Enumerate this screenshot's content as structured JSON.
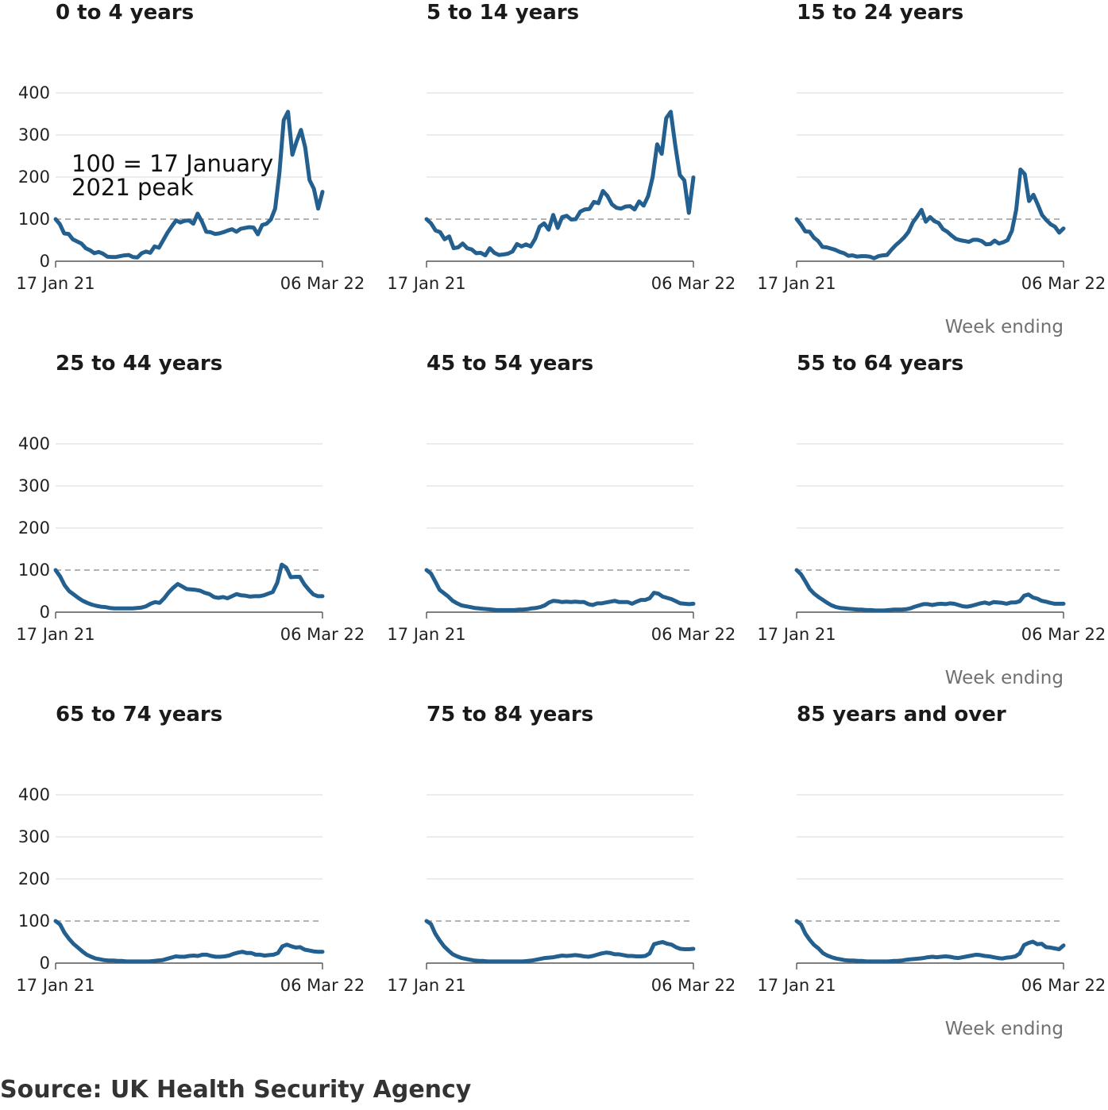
{
  "colors": {
    "series": "#23608f",
    "reference": "#9a9a9a",
    "grid": "#d9d9d9"
  },
  "source": "Source: UK Health Security Agency",
  "chart_data": {
    "type": "line",
    "x_tick_labels": [
      "17 Jan 21",
      "06 Mar 22"
    ],
    "x_axis_title": "Week ending",
    "y_ticks": [
      0,
      100,
      200,
      300,
      400
    ],
    "ylim": [
      0,
      400
    ],
    "reference_value": 100,
    "annotation": [
      "100 = 17 January",
      "2021 peak"
    ],
    "grid": true,
    "panels": [
      {
        "title": "0 to 4 years",
        "values": [
          100,
          88,
          66,
          65,
          52,
          47,
          42,
          31,
          26,
          19,
          22,
          18,
          11,
          10,
          10,
          12,
          14,
          15,
          10,
          9,
          19,
          23,
          20,
          35,
          32,
          50,
          68,
          83,
          97,
          92,
          96,
          97,
          89,
          113,
          94,
          70,
          69,
          65,
          66,
          69,
          73,
          76,
          70,
          77,
          79,
          81,
          80,
          64,
          86,
          89,
          99,
          125,
          210,
          335,
          355,
          253,
          285,
          312,
          270,
          193,
          172,
          125,
          165
        ]
      },
      {
        "title": "5 to 14 years",
        "values": [
          100,
          90,
          73,
          69,
          52,
          59,
          31,
          33,
          42,
          31,
          28,
          19,
          20,
          14,
          31,
          20,
          15,
          16,
          18,
          23,
          41,
          35,
          40,
          35,
          53,
          82,
          90,
          75,
          110,
          79,
          105,
          108,
          99,
          100,
          118,
          123,
          124,
          141,
          138,
          167,
          155,
          135,
          127,
          125,
          130,
          131,
          123,
          142,
          132,
          155,
          200,
          278,
          255,
          340,
          355,
          275,
          205,
          192,
          115,
          199
        ]
      },
      {
        "title": "15 to 24 years",
        "values": [
          100,
          87,
          71,
          70,
          56,
          48,
          34,
          33,
          30,
          27,
          22,
          19,
          13,
          14,
          11,
          12,
          12,
          11,
          7,
          12,
          14,
          15,
          27,
          38,
          47,
          57,
          70,
          92,
          106,
          122,
          94,
          105,
          95,
          91,
          76,
          70,
          61,
          53,
          50,
          48,
          46,
          51,
          51,
          48,
          40,
          41,
          49,
          42,
          45,
          50,
          72,
          122,
          218,
          207,
          143,
          158,
          135,
          110,
          98,
          88,
          82,
          68,
          78
        ]
      },
      {
        "title": "25 to 44 years",
        "values": [
          100,
          85,
          64,
          50,
          42,
          34,
          27,
          22,
          18,
          15,
          13,
          12,
          10,
          9,
          9,
          9,
          9,
          9,
          10,
          11,
          14,
          20,
          24,
          22,
          33,
          47,
          58,
          67,
          61,
          55,
          54,
          53,
          51,
          46,
          43,
          36,
          34,
          36,
          33,
          38,
          43,
          40,
          39,
          37,
          38,
          38,
          40,
          44,
          48,
          70,
          113,
          106,
          83,
          84,
          84,
          66,
          53,
          42,
          38,
          38
        ]
      },
      {
        "title": "45 to 54 years",
        "values": [
          100,
          92,
          73,
          53,
          45,
          37,
          27,
          21,
          16,
          14,
          12,
          10,
          9,
          8,
          7,
          6,
          5,
          5,
          5,
          5,
          5,
          6,
          6,
          7,
          9,
          10,
          12,
          16,
          23,
          27,
          26,
          24,
          25,
          24,
          25,
          24,
          24,
          19,
          17,
          21,
          21,
          23,
          25,
          27,
          24,
          24,
          24,
          20,
          25,
          29,
          29,
          33,
          46,
          44,
          37,
          34,
          31,
          26,
          21,
          20,
          19,
          20
        ]
      },
      {
        "title": "55 to 64 years",
        "values": [
          100,
          90,
          73,
          55,
          44,
          36,
          29,
          22,
          16,
          12,
          10,
          9,
          8,
          7,
          6,
          6,
          5,
          5,
          4,
          4,
          4,
          5,
          6,
          6,
          6,
          7,
          9,
          13,
          16,
          19,
          19,
          17,
          19,
          20,
          19,
          21,
          20,
          17,
          14,
          13,
          15,
          18,
          21,
          23,
          20,
          24,
          23,
          22,
          20,
          23,
          23,
          26,
          39,
          42,
          35,
          32,
          27,
          25,
          22,
          20,
          20,
          20
        ]
      },
      {
        "title": "65 to 74 years",
        "values": [
          100,
          92,
          72,
          58,
          46,
          37,
          28,
          20,
          15,
          11,
          9,
          7,
          6,
          6,
          5,
          5,
          4,
          4,
          4,
          4,
          4,
          4,
          5,
          6,
          7,
          10,
          13,
          16,
          15,
          15,
          17,
          18,
          17,
          20,
          20,
          17,
          15,
          15,
          16,
          18,
          22,
          25,
          27,
          24,
          24,
          20,
          20,
          18,
          19,
          20,
          24,
          40,
          44,
          40,
          37,
          38,
          32,
          30,
          28,
          27,
          27
        ]
      },
      {
        "title": "75 to 84 years",
        "values": [
          100,
          93,
          70,
          54,
          40,
          30,
          21,
          16,
          12,
          10,
          8,
          6,
          5,
          5,
          4,
          4,
          4,
          4,
          4,
          4,
          4,
          4,
          4,
          5,
          6,
          8,
          10,
          12,
          13,
          14,
          16,
          18,
          17,
          18,
          19,
          18,
          16,
          15,
          17,
          20,
          23,
          25,
          24,
          21,
          21,
          19,
          17,
          17,
          16,
          16,
          17,
          23,
          45,
          48,
          50,
          46,
          44,
          38,
          34,
          33,
          33,
          34
        ]
      },
      {
        "title": "85 years and over",
        "values": [
          100,
          92,
          70,
          55,
          43,
          35,
          24,
          18,
          14,
          11,
          9,
          7,
          6,
          6,
          5,
          5,
          4,
          4,
          4,
          4,
          4,
          4,
          5,
          5,
          6,
          8,
          9,
          10,
          11,
          12,
          14,
          15,
          14,
          15,
          16,
          15,
          13,
          12,
          14,
          16,
          18,
          20,
          19,
          17,
          16,
          14,
          12,
          11,
          13,
          14,
          16,
          23,
          43,
          48,
          51,
          45,
          46,
          38,
          37,
          35,
          33,
          42
        ]
      }
    ]
  }
}
